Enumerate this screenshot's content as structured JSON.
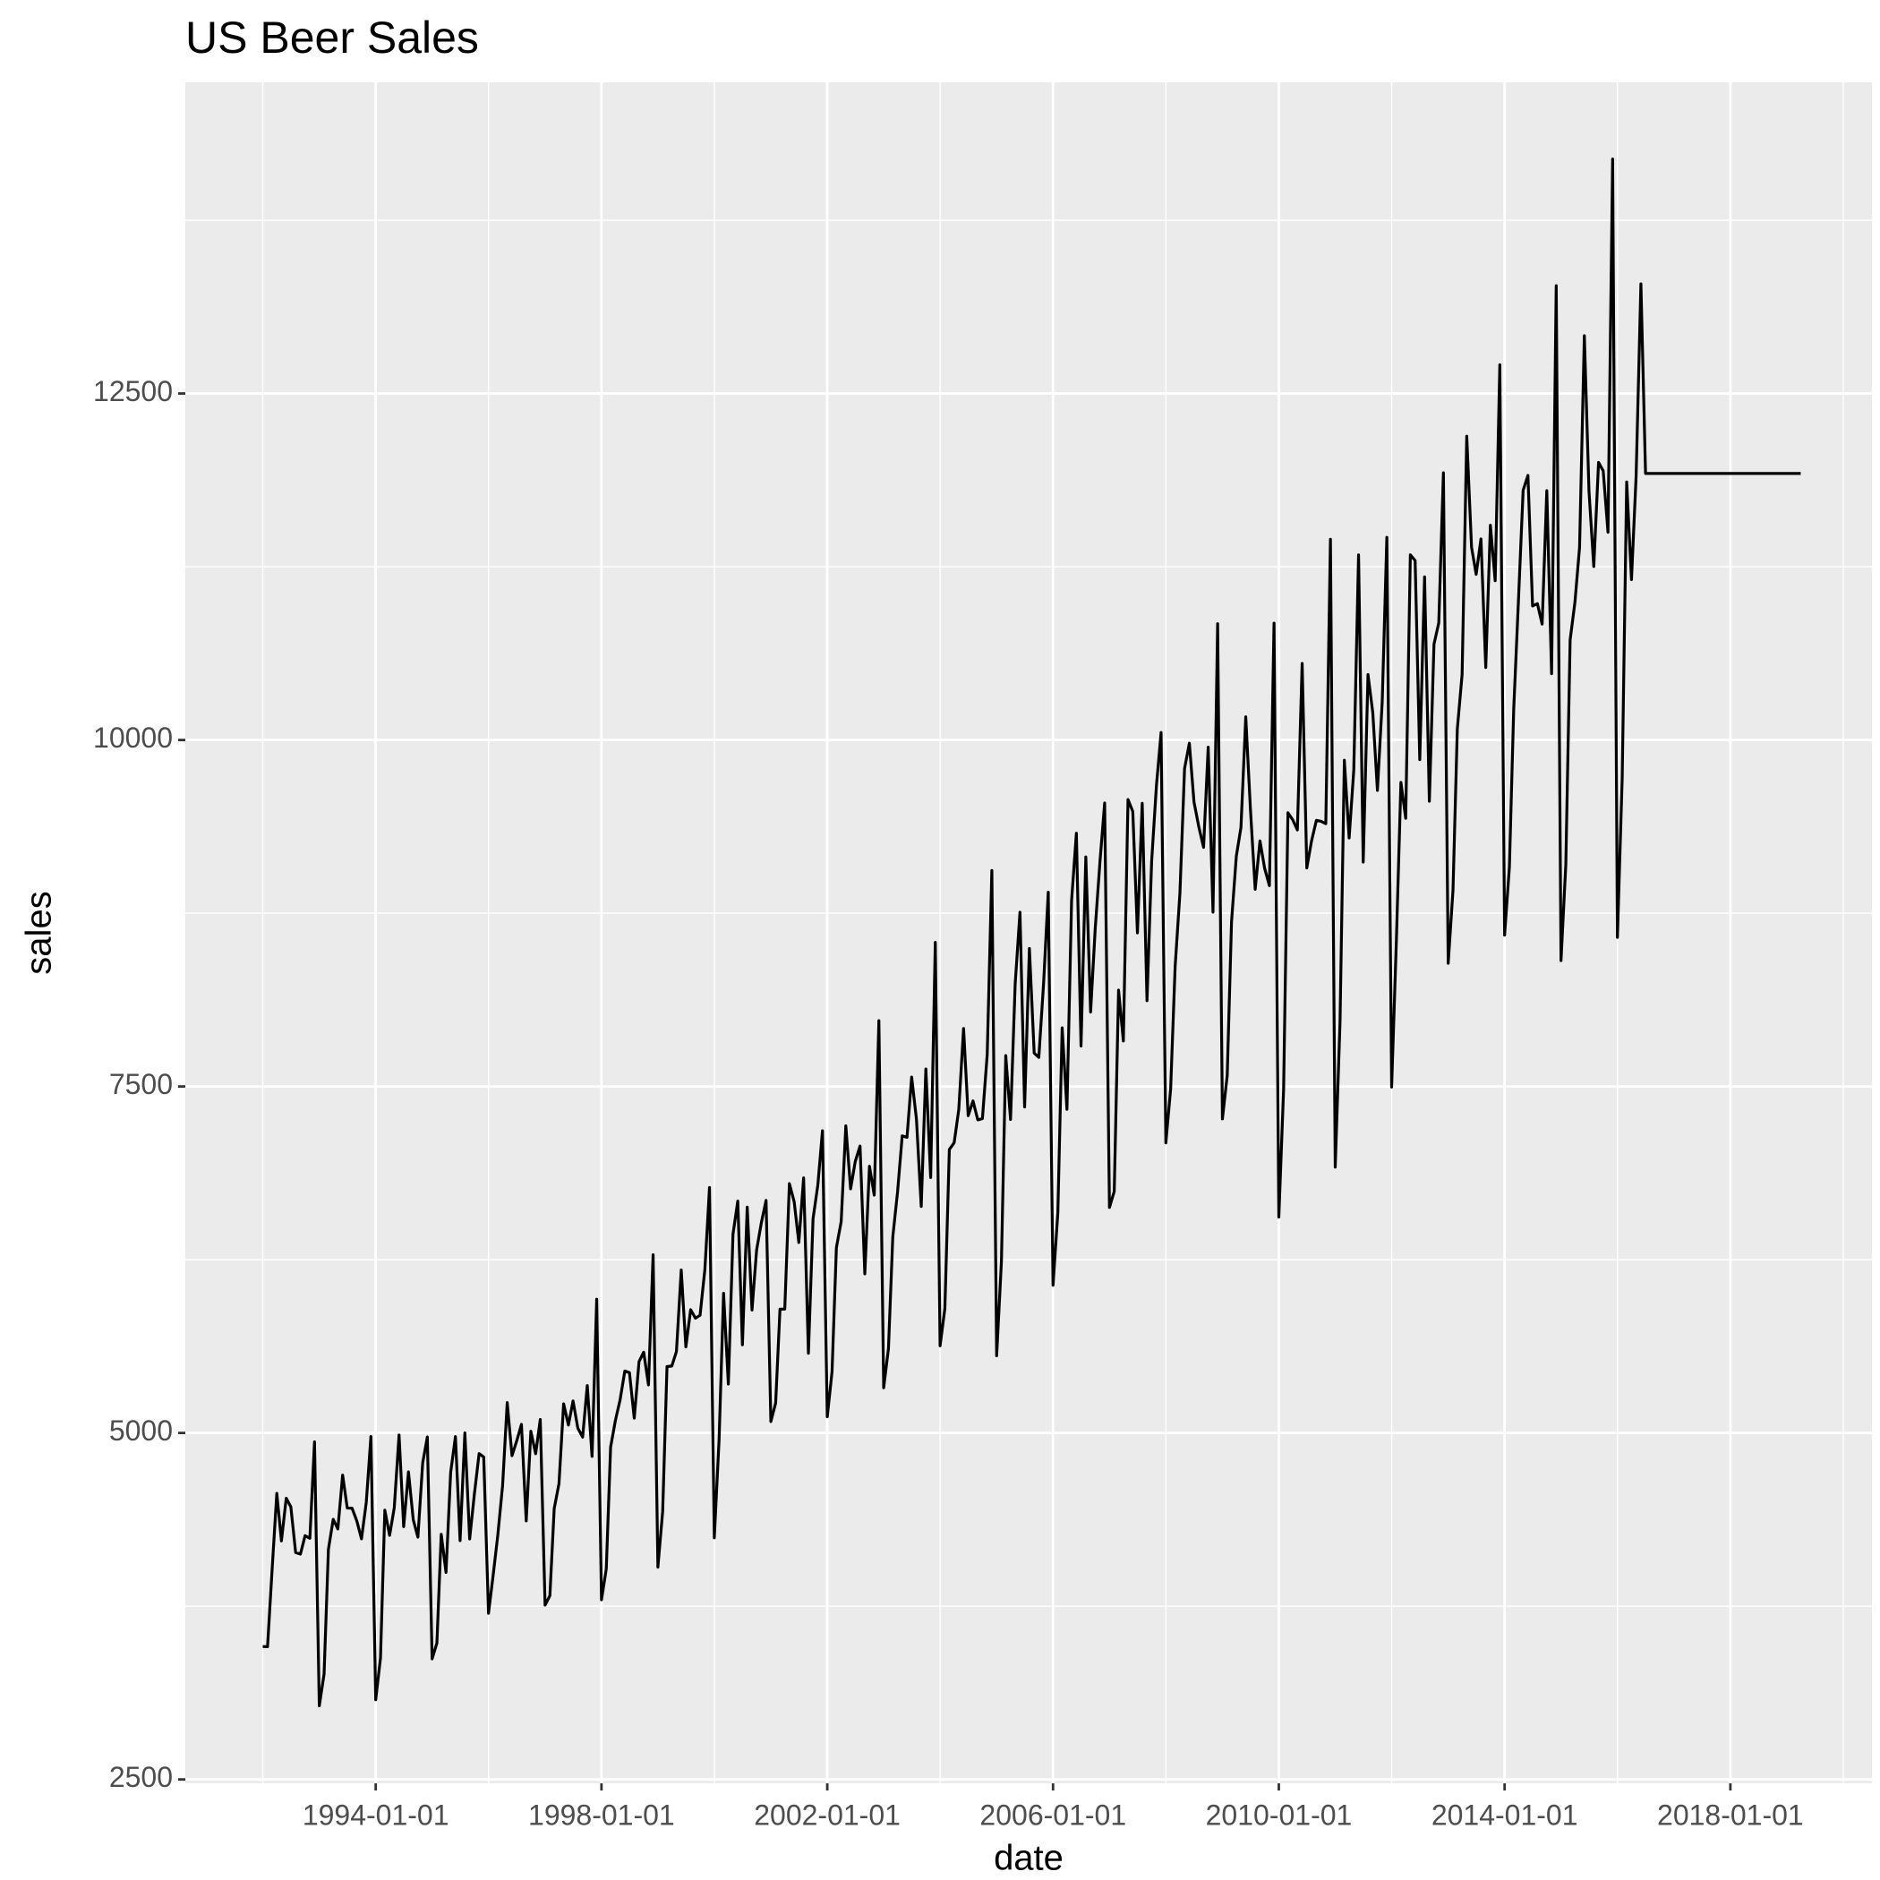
{
  "chart_data": {
    "type": "line",
    "title": "US Beer Sales",
    "x_label": "date",
    "y_label": "sales",
    "color": "#000000",
    "grid": true,
    "x": [
      "1992-01-01",
      "1992-02-01",
      "1992-03-01",
      "1992-04-01",
      "1992-05-01",
      "1992-06-01",
      "1992-07-01",
      "1992-08-01",
      "1992-09-01",
      "1992-10-01",
      "1992-11-01",
      "1992-12-01",
      "1993-01-01",
      "1993-02-01",
      "1993-03-01",
      "1993-04-01",
      "1993-05-01",
      "1993-06-01",
      "1993-07-01",
      "1993-08-01",
      "1993-09-01",
      "1993-10-01",
      "1993-11-01",
      "1993-12-01",
      "1994-01-01",
      "1994-02-01",
      "1994-03-01",
      "1994-04-01",
      "1994-05-01",
      "1994-06-01",
      "1994-07-01",
      "1994-08-01",
      "1994-09-01",
      "1994-10-01",
      "1994-11-01",
      "1994-12-01",
      "1995-01-01",
      "1995-02-01",
      "1995-03-01",
      "1995-04-01",
      "1995-05-01",
      "1995-06-01",
      "1995-07-01",
      "1995-08-01",
      "1995-09-01",
      "1995-10-01",
      "1995-11-01",
      "1995-12-01",
      "1996-01-01",
      "1996-02-01",
      "1996-03-01",
      "1996-04-01",
      "1996-05-01",
      "1996-06-01",
      "1996-07-01",
      "1996-08-01",
      "1996-09-01",
      "1996-10-01",
      "1996-11-01",
      "1996-12-01",
      "1997-01-01",
      "1997-02-01",
      "1997-03-01",
      "1997-04-01",
      "1997-05-01",
      "1997-06-01",
      "1997-07-01",
      "1997-08-01",
      "1997-09-01",
      "1997-10-01",
      "1997-11-01",
      "1997-12-01",
      "1998-01-01",
      "1998-02-01",
      "1998-03-01",
      "1998-04-01",
      "1998-05-01",
      "1998-06-01",
      "1998-07-01",
      "1998-08-01",
      "1998-09-01",
      "1998-10-01",
      "1998-11-01",
      "1998-12-01",
      "1999-01-01",
      "1999-02-01",
      "1999-03-01",
      "1999-04-01",
      "1999-05-01",
      "1999-06-01",
      "1999-07-01",
      "1999-08-01",
      "1999-09-01",
      "1999-10-01",
      "1999-11-01",
      "1999-12-01",
      "2000-01-01",
      "2000-02-01",
      "2000-03-01",
      "2000-04-01",
      "2000-05-01",
      "2000-06-01",
      "2000-07-01",
      "2000-08-01",
      "2000-09-01",
      "2000-10-01",
      "2000-11-01",
      "2000-12-01",
      "2001-01-01",
      "2001-02-01",
      "2001-03-01",
      "2001-04-01",
      "2001-05-01",
      "2001-06-01",
      "2001-07-01",
      "2001-08-01",
      "2001-09-01",
      "2001-10-01",
      "2001-11-01",
      "2001-12-01",
      "2002-01-01",
      "2002-02-01",
      "2002-03-01",
      "2002-04-01",
      "2002-05-01",
      "2002-06-01",
      "2002-07-01",
      "2002-08-01",
      "2002-09-01",
      "2002-10-01",
      "2002-11-01",
      "2002-12-01",
      "2003-01-01",
      "2003-02-01",
      "2003-03-01",
      "2003-04-01",
      "2003-05-01",
      "2003-06-01",
      "2003-07-01",
      "2003-08-01",
      "2003-09-01",
      "2003-10-01",
      "2003-11-01",
      "2003-12-01",
      "2004-01-01",
      "2004-02-01",
      "2004-03-01",
      "2004-04-01",
      "2004-05-01",
      "2004-06-01",
      "2004-07-01",
      "2004-08-01",
      "2004-09-01",
      "2004-10-01",
      "2004-11-01",
      "2004-12-01",
      "2005-01-01",
      "2005-02-01",
      "2005-03-01",
      "2005-04-01",
      "2005-05-01",
      "2005-06-01",
      "2005-07-01",
      "2005-08-01",
      "2005-09-01",
      "2005-10-01",
      "2005-11-01",
      "2005-12-01",
      "2006-01-01",
      "2006-02-01",
      "2006-03-01",
      "2006-04-01",
      "2006-05-01",
      "2006-06-01",
      "2006-07-01",
      "2006-08-01",
      "2006-09-01",
      "2006-10-01",
      "2006-11-01",
      "2006-12-01",
      "2007-01-01",
      "2007-02-01",
      "2007-03-01",
      "2007-04-01",
      "2007-05-01",
      "2007-06-01",
      "2007-07-01",
      "2007-08-01",
      "2007-09-01",
      "2007-10-01",
      "2007-11-01",
      "2007-12-01",
      "2008-01-01",
      "2008-02-01",
      "2008-03-01",
      "2008-04-01",
      "2008-05-01",
      "2008-06-01",
      "2008-07-01",
      "2008-08-01",
      "2008-09-01",
      "2008-10-01",
      "2008-11-01",
      "2008-12-01",
      "2009-01-01",
      "2009-02-01",
      "2009-03-01",
      "2009-04-01",
      "2009-05-01",
      "2009-06-01",
      "2009-07-01",
      "2009-08-01",
      "2009-09-01",
      "2009-10-01",
      "2009-11-01",
      "2009-12-01",
      "2010-01-01",
      "2010-02-01",
      "2010-03-01",
      "2010-04-01",
      "2010-05-01",
      "2010-06-01",
      "2010-07-01",
      "2010-08-01",
      "2010-09-01",
      "2010-10-01",
      "2010-11-01",
      "2010-12-01",
      "2011-01-01",
      "2011-02-01",
      "2011-03-01",
      "2011-04-01",
      "2011-05-01",
      "2011-06-01",
      "2011-07-01",
      "2011-08-01",
      "2011-09-01",
      "2011-10-01",
      "2011-11-01",
      "2011-12-01",
      "2012-01-01",
      "2012-02-01",
      "2012-03-01",
      "2012-04-01",
      "2012-05-01",
      "2012-06-01",
      "2012-07-01",
      "2012-08-01",
      "2012-09-01",
      "2012-10-01",
      "2012-11-01",
      "2012-12-01",
      "2013-01-01",
      "2013-02-01",
      "2013-03-01",
      "2013-04-01",
      "2013-05-01",
      "2013-06-01",
      "2013-07-01",
      "2013-08-01",
      "2013-09-01",
      "2013-10-01",
      "2013-11-01",
      "2013-12-01",
      "2014-01-01",
      "2014-02-01",
      "2014-03-01",
      "2014-04-01",
      "2014-05-01",
      "2014-06-01",
      "2014-07-01",
      "2014-08-01",
      "2014-09-01",
      "2014-10-01",
      "2014-11-01",
      "2014-12-01",
      "2015-01-01",
      "2015-02-01",
      "2015-03-01",
      "2015-04-01",
      "2015-05-01",
      "2015-06-01",
      "2015-07-01",
      "2015-08-01",
      "2015-09-01",
      "2015-10-01",
      "2015-11-01",
      "2015-12-01",
      "2016-01-01",
      "2016-02-01",
      "2016-03-01",
      "2016-04-01",
      "2016-05-01",
      "2016-06-01",
      "2016-07-01",
      "2019-04-01"
    ],
    "values": [
      3459,
      3458,
      4002,
      4564,
      4221,
      4529,
      4466,
      4137,
      4126,
      4259,
      4240,
      4936,
      3031,
      3261,
      4160,
      4377,
      4307,
      4696,
      4458,
      4457,
      4364,
      4236,
      4500,
      4974,
      3075,
      3377,
      4443,
      4261,
      4460,
      4985,
      4324,
      4719,
      4374,
      4248,
      4784,
      4971,
      3370,
      3484,
      4269,
      3994,
      4715,
      4974,
      4223,
      5000,
      4235,
      4554,
      4851,
      4826,
      3699,
      3983,
      4262,
      4619,
      5219,
      4836,
      4941,
      5062,
      4365,
      5012,
      4850,
      5097,
      3758,
      3825,
      4454,
      4635,
      5210,
      5057,
      5231,
      5034,
      4970,
      5342,
      4831,
      5965,
      3796,
      4019,
      4898,
      5090,
      5237,
      5447,
      5435,
      5107,
      5515,
      5583,
      5346,
      6286,
      4032,
      4435,
      5479,
      5483,
      5587,
      6176,
      5621,
      5889,
      5828,
      5849,
      6180,
      6771,
      4243,
      4952,
      6008,
      5353,
      6435,
      6673,
      5636,
      6630,
      5887,
      6322,
      6520,
      6678,
      5082,
      5216,
      5893,
      5894,
      6799,
      6667,
      6374,
      6840,
      5575,
      6545,
      6789,
      7180,
      5117,
      5442,
      6337,
      6525,
      7216,
      6761,
      6958,
      7070,
      6148,
      6924,
      6716,
      7975,
      5326,
      5609,
      6414,
      6741,
      7144,
      7133,
      7568,
      7266,
      6634,
      7626,
      6843,
      8540,
      5629,
      5898,
      7045,
      7094,
      7333,
      7918,
      7289,
      7396,
      7259,
      7268,
      7731,
      9058,
      5557,
      6237,
      7723,
      7262,
      8241,
      8757,
      7352,
      8496,
      7741,
      7710,
      8247,
      8902,
      6066,
      6590,
      7923,
      7335,
      8843,
      9327,
      7792,
      9156,
      8037,
      8640,
      9128,
      9545,
      6627,
      6743,
      8195,
      7828,
      9570,
      9484,
      8608,
      9543,
      8119,
      9125,
      9671,
      10054,
      7093,
      7483,
      8365,
      8895,
      9794,
      9977,
      9553,
      9375,
      9225,
      9948,
      8758,
      10839,
      7266,
      7578,
      8688,
      9162,
      9369,
      10167,
      9507,
      8923,
      9272,
      9075,
      8949,
      10843,
      6558,
      7481,
      9475,
      9424,
      9351,
      10552,
      9077,
      9273,
      9420,
      9413,
      9396,
      11448,
      6918,
      7963,
      9854,
      9293,
      9783,
      11335,
      9119,
      10472,
      10197,
      9636,
      10275,
      11462,
      7496,
      8564,
      9694,
      9435,
      11336,
      11295,
      9858,
      11177,
      9558,
      10691,
      10845,
      11928,
      8389,
      8916,
      10079,
      10473,
      12192,
      11392,
      11195,
      11451,
      10523,
      11549,
      11149,
      12707,
      8592,
      9084,
      10223,
      11017,
      11802,
      11909,
      10967,
      10984,
      10836,
      11799,
      10478,
      13278,
      8408,
      9099,
      10723,
      10993,
      11390,
      12917,
      11796,
      11252,
      12003,
      11942,
      11499,
      14192,
      8576,
      9726,
      11862,
      11157,
      11903,
      13291,
      11923,
      11923
    ],
    "xlim": [
      "1990-08-18",
      "2020-07-05"
    ],
    "xticks": [
      "1994-01-01",
      "1998-01-01",
      "2002-01-01",
      "2006-01-01",
      "2010-01-01",
      "2014-01-01",
      "2018-01-01"
    ],
    "ylim": [
      2472,
      14745
    ],
    "yticks": [
      2500,
      5000,
      7500,
      10000,
      12500
    ]
  }
}
